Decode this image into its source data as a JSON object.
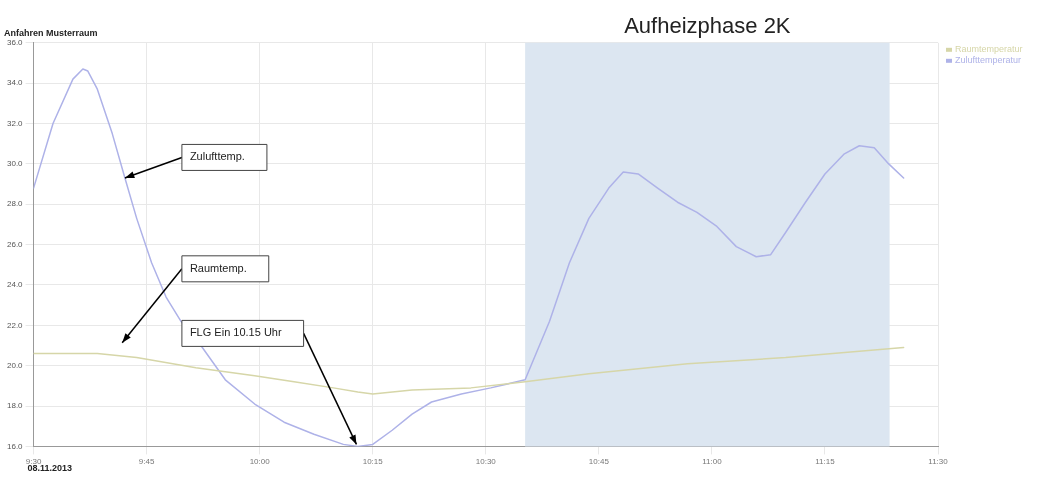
{
  "chart_data": {
    "type": "line",
    "title": "Anfahren Musterraum",
    "legend": "top right",
    "grid": true,
    "marker": "none",
    "line_style": "solid",
    "xlim": [
      9.5,
      11.5
    ],
    "xticks": [
      {
        "value": 9.5,
        "label": "9:30"
      },
      {
        "value": 9.75,
        "label": "9:45"
      },
      {
        "value": 10,
        "label": "10:00"
      },
      {
        "value": 10.25,
        "label": "10:15"
      },
      {
        "value": 10.5,
        "label": "10:30"
      },
      {
        "value": 10.75,
        "label": "10:45"
      },
      {
        "value": 11,
        "label": "11:00"
      },
      {
        "value": 11.25,
        "label": "11:15"
      },
      {
        "value": 11.5,
        "label": "11:30"
      }
    ],
    "ylim": [
      16,
      36
    ],
    "yticks": [
      {
        "value": 16,
        "label": "16.0"
      },
      {
        "value": 18,
        "label": "18.0"
      },
      {
        "value": 20,
        "label": "20.0"
      },
      {
        "value": 22,
        "label": "22.0"
      },
      {
        "value": 24,
        "label": "24.0"
      },
      {
        "value": 26,
        "label": "26.0"
      },
      {
        "value": 28,
        "label": "28.0"
      },
      {
        "value": 30,
        "label": "30.0"
      },
      {
        "value": 32,
        "label": "32.0"
      },
      {
        "value": 34,
        "label": "34.0"
      },
      {
        "value": 36,
        "label": "36.0"
      }
    ],
    "series": [
      {
        "name": "Raumtemperatur",
        "color": "#d6d6a8",
        "x": [
          9.5,
          9.641,
          9.728,
          9.859,
          9.989,
          10.076,
          10.163,
          10.217,
          10.25,
          10.337,
          10.467,
          10.587,
          10.728,
          10.946,
          11.163,
          11.424
        ],
        "values": [
          20.6,
          20.6,
          20.4,
          19.9,
          19.5,
          19.2,
          18.9,
          18.7,
          18.6,
          18.8,
          18.9,
          19.2,
          19.6,
          20.1,
          20.4,
          20.9
        ]
      },
      {
        "name": "Zulufttemperatur",
        "color": "#aeb2e8",
        "x": [
          9.5,
          9.543,
          9.587,
          9.609,
          9.62,
          9.641,
          9.674,
          9.702,
          9.728,
          9.761,
          9.793,
          9.826,
          9.87,
          9.924,
          9.989,
          10.054,
          10.12,
          10.185,
          10.217,
          10.25,
          10.293,
          10.337,
          10.38,
          10.446,
          10.511,
          10.587,
          10.641,
          10.685,
          10.728,
          10.772,
          10.804,
          10.837,
          10.88,
          10.924,
          10.967,
          11.011,
          11.054,
          11.098,
          11.13,
          11.163,
          11.207,
          11.25,
          11.293,
          11.326,
          11.359,
          11.391,
          11.424
        ],
        "values": [
          28.8,
          32.0,
          34.2,
          34.7,
          34.6,
          33.7,
          31.5,
          29.3,
          27.3,
          25.1,
          23.4,
          22.2,
          21.0,
          19.3,
          18.1,
          17.2,
          16.6,
          16.1,
          16.0,
          16.1,
          16.8,
          17.6,
          18.2,
          18.6,
          18.9,
          19.3,
          22.2,
          25.1,
          27.3,
          28.8,
          29.6,
          29.5,
          28.8,
          28.1,
          27.6,
          26.9,
          25.9,
          25.4,
          25.5,
          26.6,
          28.1,
          29.5,
          30.5,
          30.9,
          30.8,
          30.0,
          29.3
        ]
      }
    ],
    "bands": [
      {
        "axis": "x",
        "from": 10.587,
        "to": 11.393,
        "label": "Aufheizphase 2K",
        "color": "#dce6f1"
      }
    ],
    "annotations": [
      {
        "text": "Zulufttemp.",
        "x": 9.702,
        "y": 29.3
      },
      "Raumtemp.",
      "FLG Ein 10.15 Uhr",
      "08.11.2013"
    ]
  }
}
